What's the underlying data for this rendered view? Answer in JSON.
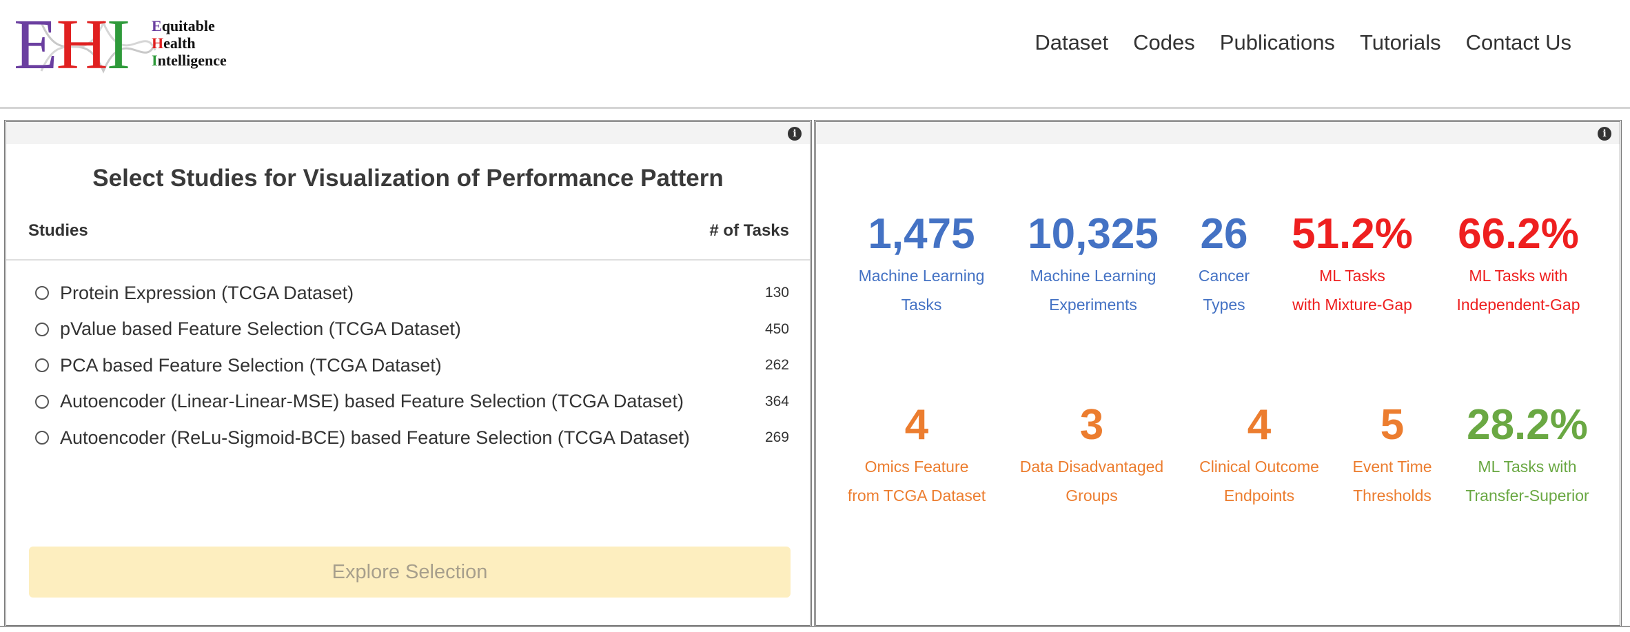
{
  "logo": {
    "letters": [
      "E",
      "H",
      "I"
    ],
    "words": [
      {
        "initial": "E",
        "rest": "quitable"
      },
      {
        "initial": "H",
        "rest": "ealth"
      },
      {
        "initial": "I",
        "rest": "ntelligence"
      }
    ],
    "colors": {
      "E": "#6b3fa0",
      "H": "#e02020",
      "I": "#2e9a3a"
    }
  },
  "nav": {
    "items": [
      "Dataset",
      "Codes",
      "Publications",
      "Tutorials",
      "Contact Us"
    ]
  },
  "studies_panel": {
    "info_icon": "i",
    "title": "Select Studies for Visualization of Performance Pattern",
    "col_studies": "Studies",
    "col_tasks": "# of Tasks",
    "rows": [
      {
        "name": "Protein Expression (TCGA Dataset)",
        "count": "130"
      },
      {
        "name": "pValue based Feature Selection (TCGA Dataset)",
        "count": "450"
      },
      {
        "name": "PCA based Feature Selection (TCGA Dataset)",
        "count": "262"
      },
      {
        "name": "Autoencoder (Linear-Linear-MSE) based Feature Selection (TCGA Dataset)",
        "count": "364"
      },
      {
        "name": "Autoencoder (ReLu-Sigmoid-BCE) based Feature Selection (TCGA Dataset)",
        "count": "269"
      }
    ],
    "explore_button": "Explore Selection"
  },
  "stats_panel": {
    "info_icon": "i",
    "stats": [
      {
        "value": "1,475",
        "line1": "Machine Learning",
        "line2": "Tasks",
        "color": "#4472c4"
      },
      {
        "value": "10,325",
        "line1": "Machine Learning",
        "line2": "Experiments",
        "color": "#4472c4"
      },
      {
        "value": "26",
        "line1": "Cancer",
        "line2": "Types",
        "color": "#4472c4"
      },
      {
        "value": "51.2%",
        "line1": "ML Tasks",
        "line2": "with Mixture-Gap",
        "color": "#ee1f1f"
      },
      {
        "value": "66.2%",
        "line1": "ML Tasks with",
        "line2": "Independent-Gap",
        "color": "#ee1f1f"
      },
      {
        "value": "4",
        "line1": "Omics Feature",
        "line2": "from TCGA Dataset",
        "color": "#ec7d2f"
      },
      {
        "value": "3",
        "line1": "Data Disadvantaged",
        "line2": "Groups",
        "color": "#ec7d2f"
      },
      {
        "value": "4",
        "line1": "Clinical Outcome",
        "line2": "Endpoints",
        "color": "#ec7d2f"
      },
      {
        "value": "5",
        "line1": "Event Time",
        "line2": "Thresholds",
        "color": "#ec7d2f"
      },
      {
        "value": "28.2%",
        "line1": "ML Tasks with",
        "line2": "Transfer-Superior",
        "color": "#6aa843"
      }
    ]
  }
}
